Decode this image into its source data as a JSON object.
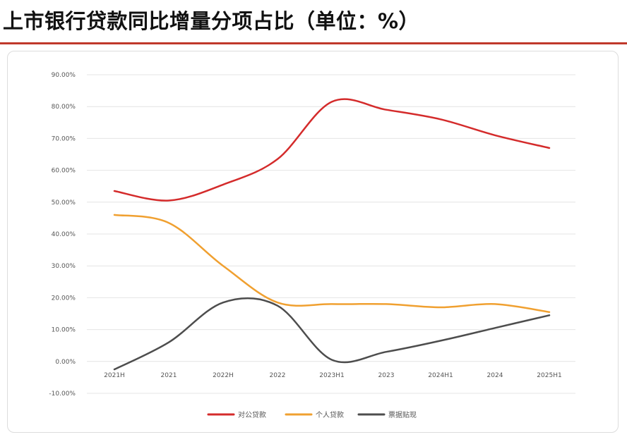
{
  "title": "上市银行贷款同比增量分项占比（单位：%）",
  "colors": {
    "accent": "#c0392b"
  },
  "chart_data": {
    "type": "line",
    "title": "上市银行贷款同比增量分项占比（单位：%）",
    "xlabel": "",
    "ylabel": "",
    "categories": [
      "2021H",
      "2021",
      "2022H",
      "2022",
      "2023H1",
      "2023",
      "2024H1",
      "2024",
      "2025H1"
    ],
    "yticks": [
      "90.00%",
      "80.00%",
      "70.00%",
      "60.00%",
      "50.00%",
      "40.00%",
      "30.00%",
      "20.00%",
      "10.00%",
      "0.00%",
      "-10.00%"
    ],
    "ylim": [
      -10,
      90
    ],
    "grid": true,
    "legend_position": "bottom",
    "series": [
      {
        "name": "对公贷款",
        "color": "#d42b2b",
        "values": [
          53.5,
          50.5,
          55.5,
          63.5,
          81.5,
          79.0,
          76.0,
          71.0,
          67.0
        ]
      },
      {
        "name": "个人贷款",
        "color": "#f0a030",
        "values": [
          46.0,
          43.5,
          30.0,
          18.5,
          18.0,
          18.0,
          17.0,
          18.0,
          15.5
        ]
      },
      {
        "name": "票据贴现",
        "color": "#4d4d4d",
        "values": [
          -2.5,
          6.0,
          18.5,
          17.5,
          0.5,
          3.0,
          6.5,
          10.5,
          14.5
        ]
      }
    ]
  }
}
